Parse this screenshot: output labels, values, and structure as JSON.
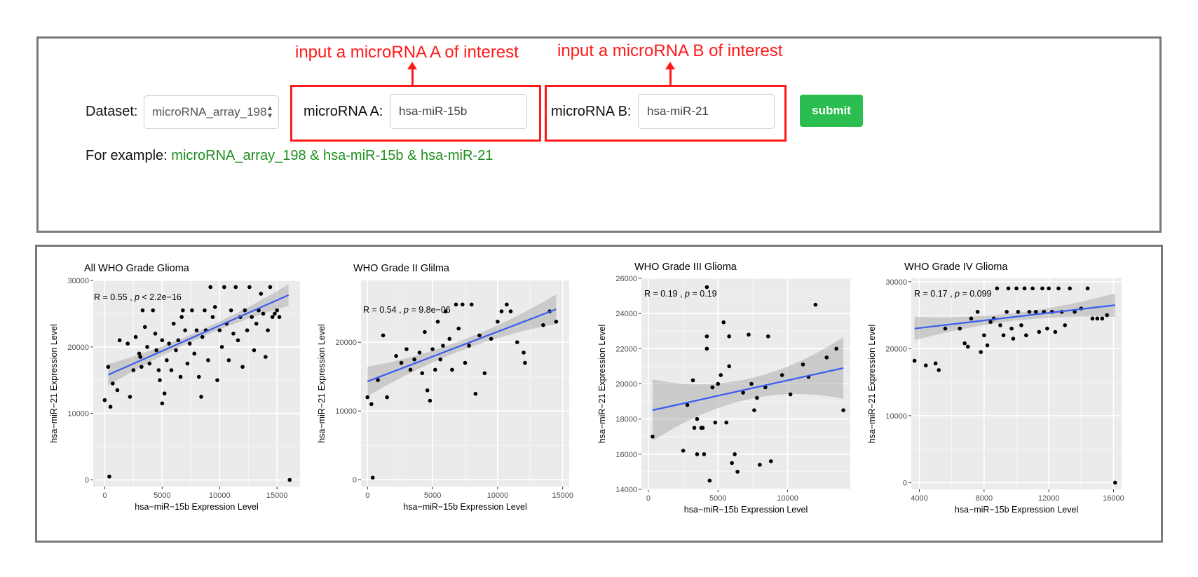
{
  "form": {
    "dataset_label": "Dataset:",
    "dataset_value": "microRNA_array_198",
    "mirna_a_label": "microRNA A:",
    "mirna_a_value": "hsa-miR-15b",
    "mirna_b_label": "microRNA B:",
    "mirna_b_value": "hsa-miR-21",
    "submit_label": "submit",
    "example_prefix": "For example:",
    "example_text": "microRNA_array_198 & hsa-miR-15b & hsa-miR-21"
  },
  "annotations": {
    "a": "input a microRNA A of interest",
    "b": "input a microRNA B of interest"
  },
  "colors": {
    "annotation": "#ff1a1a",
    "submit": "#2bbd4f",
    "example": "#1e8f1e",
    "fit_line": "#3a5cf0",
    "plot_bg": "#ebebeb"
  },
  "icons": {
    "select_caret": "up-down-caret-icon",
    "arrow": "arrow-up-icon"
  },
  "chart_data": [
    {
      "type": "scatter",
      "title": "All WHO Grade Glioma",
      "stats": {
        "r": "R = 0.55",
        "p_label": "p",
        "p": " < 2.2e−16"
      },
      "xlabel": "hsa−miR−15b Expression Level",
      "ylabel": "hsa−miR−21 Expression Level",
      "xlim": [
        -1000,
        17000
      ],
      "ylim": [
        -1000,
        30000
      ],
      "xticks": [
        0,
        5000,
        10000,
        15000
      ],
      "yticks": [
        0,
        10000,
        20000,
        30000
      ],
      "fit": [
        [
          300,
          15800
        ],
        [
          16000,
          27800
        ]
      ],
      "band_width": 1200,
      "points": [
        [
          0,
          12000
        ],
        [
          300,
          17000
        ],
        [
          500,
          11000
        ],
        [
          700,
          14500
        ],
        [
          400,
          500
        ],
        [
          1100,
          13500
        ],
        [
          1300,
          21000
        ],
        [
          2000,
          20500
        ],
        [
          2200,
          12500
        ],
        [
          2500,
          16500
        ],
        [
          2700,
          21500
        ],
        [
          3000,
          19000
        ],
        [
          3100,
          18500
        ],
        [
          3200,
          17000
        ],
        [
          3300,
          25500
        ],
        [
          3500,
          23000
        ],
        [
          3700,
          20000
        ],
        [
          3900,
          17500
        ],
        [
          4200,
          25500
        ],
        [
          4400,
          22000
        ],
        [
          4500,
          19500
        ],
        [
          4700,
          16500
        ],
        [
          4800,
          15000
        ],
        [
          5000,
          21000
        ],
        [
          5000,
          11500
        ],
        [
          5200,
          13000
        ],
        [
          5400,
          18000
        ],
        [
          5600,
          20500
        ],
        [
          5800,
          16500
        ],
        [
          6000,
          23500
        ],
        [
          6200,
          19500
        ],
        [
          6400,
          21000
        ],
        [
          6600,
          15500
        ],
        [
          6700,
          24500
        ],
        [
          6800,
          25500
        ],
        [
          7000,
          22500
        ],
        [
          7200,
          17500
        ],
        [
          7400,
          20500
        ],
        [
          7600,
          25500
        ],
        [
          7800,
          19000
        ],
        [
          8000,
          22500
        ],
        [
          8200,
          15500
        ],
        [
          8400,
          12500
        ],
        [
          8500,
          21500
        ],
        [
          8700,
          25500
        ],
        [
          8800,
          22500
        ],
        [
          9000,
          18000
        ],
        [
          9200,
          29000
        ],
        [
          9400,
          24500
        ],
        [
          9600,
          26000
        ],
        [
          9800,
          15000
        ],
        [
          10000,
          22500
        ],
        [
          10200,
          20000
        ],
        [
          10400,
          29000
        ],
        [
          10600,
          23500
        ],
        [
          10800,
          18000
        ],
        [
          11000,
          25500
        ],
        [
          11200,
          22000
        ],
        [
          11400,
          29000
        ],
        [
          11600,
          21000
        ],
        [
          11800,
          24500
        ],
        [
          12000,
          17000
        ],
        [
          12200,
          25500
        ],
        [
          12400,
          22500
        ],
        [
          12600,
          29000
        ],
        [
          12800,
          24500
        ],
        [
          13000,
          19500
        ],
        [
          13200,
          23500
        ],
        [
          13400,
          25500
        ],
        [
          13600,
          28000
        ],
        [
          13800,
          25000
        ],
        [
          14000,
          18500
        ],
        [
          14200,
          22500
        ],
        [
          14400,
          29000
        ],
        [
          14600,
          24500
        ],
        [
          14800,
          25000
        ],
        [
          15000,
          25500
        ],
        [
          15200,
          24500
        ],
        [
          16100,
          0
        ]
      ]
    },
    {
      "type": "scatter",
      "title": "WHO Grade II Glilma",
      "stats": {
        "r": "R = 0.54",
        "p_label": "p",
        "p": " = 9.8e−06"
      },
      "xlabel": "hsa−miR−15b Expression Level",
      "ylabel": "hsa−miR−21 Expression Level",
      "xlim": [
        -500,
        15500
      ],
      "ylim": [
        -1000,
        29000
      ],
      "xticks": [
        0,
        5000,
        10000,
        15000
      ],
      "yticks": [
        0,
        10000,
        20000
      ],
      "fit": [
        [
          0,
          14300
        ],
        [
          14500,
          24800
        ]
      ],
      "band_width": 1600,
      "points": [
        [
          0,
          12000
        ],
        [
          300,
          11000
        ],
        [
          400,
          300
        ],
        [
          800,
          14500
        ],
        [
          1200,
          21000
        ],
        [
          1500,
          12000
        ],
        [
          2200,
          18000
        ],
        [
          2600,
          17000
        ],
        [
          3000,
          19000
        ],
        [
          3300,
          16000
        ],
        [
          3600,
          17500
        ],
        [
          4000,
          18500
        ],
        [
          4200,
          15500
        ],
        [
          4400,
          21500
        ],
        [
          4600,
          13000
        ],
        [
          4800,
          11500
        ],
        [
          5000,
          19000
        ],
        [
          5200,
          16000
        ],
        [
          5400,
          23000
        ],
        [
          5600,
          17500
        ],
        [
          5800,
          19500
        ],
        [
          6000,
          24500
        ],
        [
          6300,
          20500
        ],
        [
          6500,
          16000
        ],
        [
          6800,
          25500
        ],
        [
          7000,
          22000
        ],
        [
          7300,
          25500
        ],
        [
          7500,
          17000
        ],
        [
          7800,
          19500
        ],
        [
          8000,
          25500
        ],
        [
          8300,
          12500
        ],
        [
          8600,
          21000
        ],
        [
          9000,
          15500
        ],
        [
          9500,
          20500
        ],
        [
          10000,
          23000
        ],
        [
          10300,
          24500
        ],
        [
          10700,
          25500
        ],
        [
          11000,
          24500
        ],
        [
          11500,
          20000
        ],
        [
          12000,
          18500
        ],
        [
          12100,
          17000
        ],
        [
          13500,
          22500
        ],
        [
          14000,
          24500
        ],
        [
          14500,
          23000
        ]
      ]
    },
    {
      "type": "scatter",
      "title": "WHO Grade III Glioma",
      "stats": {
        "r": "R = 0.19",
        "p_label": "p",
        "p": " = 0.19"
      },
      "xlabel": "hsa−miR−15b Expression Level",
      "ylabel": "hsa−miR−21 Expression Level",
      "xlim": [
        -500,
        14500
      ],
      "ylim": [
        14000,
        26000
      ],
      "xticks": [
        0,
        5000,
        10000
      ],
      "yticks": [
        14000,
        16000,
        18000,
        20000,
        22000,
        24000,
        26000
      ],
      "fit": [
        [
          300,
          18500
        ],
        [
          14000,
          20900
        ]
      ],
      "band_width": 1300,
      "points": [
        [
          300,
          17000
        ],
        [
          2500,
          16200
        ],
        [
          2800,
          18800
        ],
        [
          3200,
          20200
        ],
        [
          3300,
          17500
        ],
        [
          3500,
          16000
        ],
        [
          3500,
          18000
        ],
        [
          3800,
          17500
        ],
        [
          3900,
          17500
        ],
        [
          4000,
          16000
        ],
        [
          4200,
          22700
        ],
        [
          4200,
          22000
        ],
        [
          4600,
          19800
        ],
        [
          4800,
          17800
        ],
        [
          5000,
          20000
        ],
        [
          5200,
          20500
        ],
        [
          5400,
          23500
        ],
        [
          5600,
          17800
        ],
        [
          5800,
          22700
        ],
        [
          5800,
          21000
        ],
        [
          6000,
          15500
        ],
        [
          6200,
          16000
        ],
        [
          6400,
          15000
        ],
        [
          6800,
          19500
        ],
        [
          7200,
          22800
        ],
        [
          7400,
          20000
        ],
        [
          7600,
          18500
        ],
        [
          7800,
          19200
        ],
        [
          8000,
          15400
        ],
        [
          8400,
          19800
        ],
        [
          8600,
          22700
        ],
        [
          8800,
          15600
        ],
        [
          9600,
          20500
        ],
        [
          10200,
          19400
        ],
        [
          11100,
          21100
        ],
        [
          11500,
          20400
        ],
        [
          12000,
          24500
        ],
        [
          12800,
          21500
        ],
        [
          13500,
          22000
        ],
        [
          14000,
          18500
        ],
        [
          4400,
          14500
        ],
        [
          4200,
          25500
        ]
      ]
    },
    {
      "type": "scatter",
      "title": "WHO Grade IV Glioma",
      "stats": {
        "r": "R = 0.17",
        "p_label": "p",
        "p": " = 0.099"
      },
      "xlabel": "hsa−miR−15b Expression Level",
      "ylabel": "hsa−miR−21 Expression Level",
      "xlim": [
        3500,
        16500
      ],
      "ylim": [
        -1000,
        30500
      ],
      "xticks": [
        4000,
        8000,
        12000,
        16000
      ],
      "yticks": [
        0,
        10000,
        20000,
        30000
      ],
      "fit": [
        [
          3700,
          23000
        ],
        [
          16100,
          26500
        ]
      ],
      "band_width": 1300,
      "points": [
        [
          3700,
          18200
        ],
        [
          4400,
          17500
        ],
        [
          5000,
          17800
        ],
        [
          5200,
          16800
        ],
        [
          5600,
          23000
        ],
        [
          6500,
          23000
        ],
        [
          6800,
          20800
        ],
        [
          7000,
          20300
        ],
        [
          7200,
          24500
        ],
        [
          7600,
          25500
        ],
        [
          7800,
          19500
        ],
        [
          8000,
          22000
        ],
        [
          8200,
          20500
        ],
        [
          8400,
          24000
        ],
        [
          8600,
          24500
        ],
        [
          8800,
          29000
        ],
        [
          9000,
          23500
        ],
        [
          9200,
          22000
        ],
        [
          9400,
          25500
        ],
        [
          9500,
          29000
        ],
        [
          9700,
          23000
        ],
        [
          9800,
          21500
        ],
        [
          10000,
          29000
        ],
        [
          10100,
          25500
        ],
        [
          10300,
          23500
        ],
        [
          10500,
          29000
        ],
        [
          10600,
          22000
        ],
        [
          10800,
          25500
        ],
        [
          11000,
          29000
        ],
        [
          11200,
          25500
        ],
        [
          11400,
          22500
        ],
        [
          11600,
          29000
        ],
        [
          11700,
          25500
        ],
        [
          11900,
          23000
        ],
        [
          12000,
          29000
        ],
        [
          12200,
          25500
        ],
        [
          12400,
          22500
        ],
        [
          12600,
          29000
        ],
        [
          12800,
          25500
        ],
        [
          13000,
          23500
        ],
        [
          13300,
          29000
        ],
        [
          13600,
          25500
        ],
        [
          14000,
          26000
        ],
        [
          14400,
          29000
        ],
        [
          14700,
          24500
        ],
        [
          15000,
          24500
        ],
        [
          15300,
          24500
        ],
        [
          15600,
          25000
        ],
        [
          16100,
          0
        ]
      ]
    }
  ]
}
